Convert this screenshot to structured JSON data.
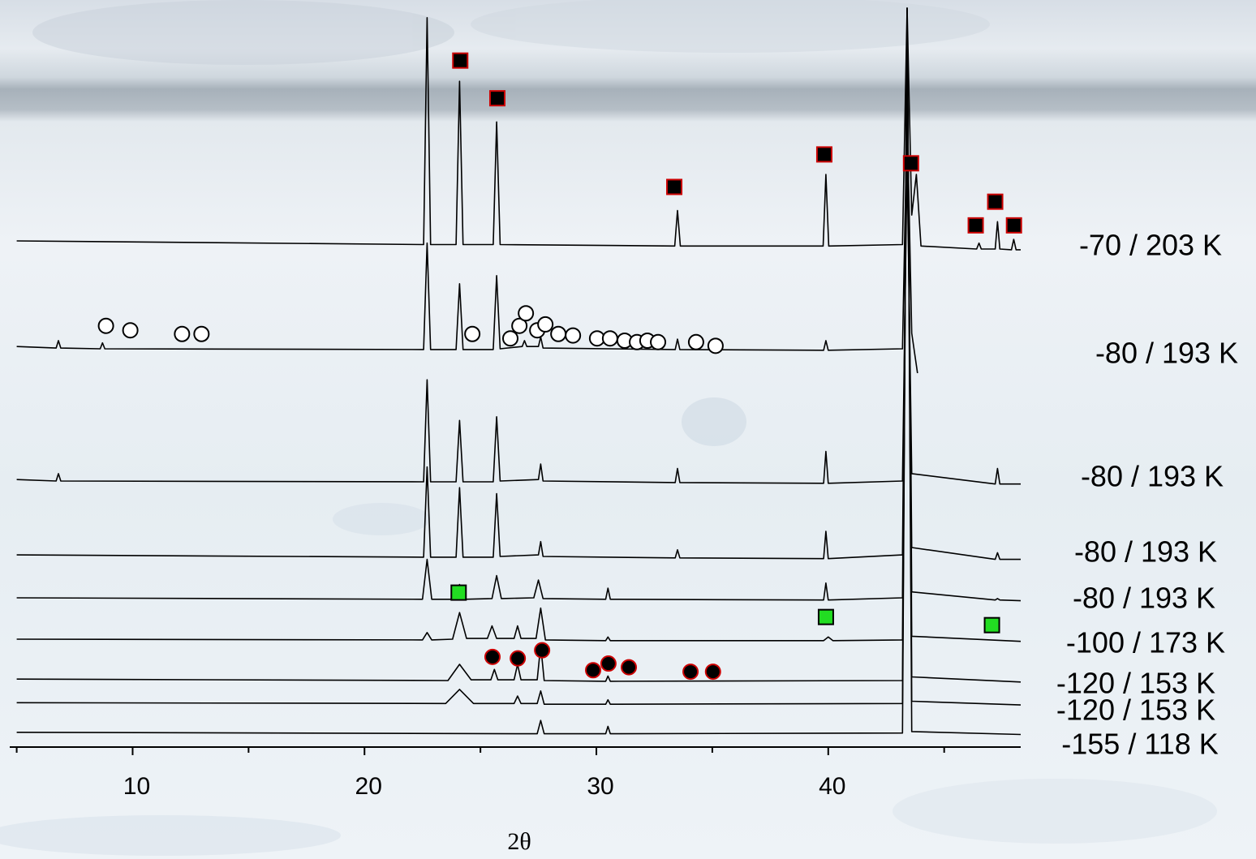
{
  "chart_data": {
    "type": "line",
    "xlabel": "2θ",
    "xlim": [
      4.7,
      48.3
    ],
    "ylim": [
      0,
      100
    ],
    "xticks": [
      10,
      20,
      30,
      40
    ],
    "xminorticks": [
      5,
      15,
      25,
      35,
      45
    ],
    "series": [
      {
        "name": "-70 / 203 K",
        "color": "#000000",
        "x": [
          5,
          22.55,
          22.7,
          22.85,
          23.95,
          24.1,
          24.25,
          25.55,
          25.7,
          25.85,
          33.38,
          33.5,
          33.62,
          39.78,
          39.9,
          40.02,
          43.2,
          43.4,
          43.6,
          43.8,
          44.0,
          46.4,
          46.5,
          46.6,
          47.2,
          47.3,
          47.4,
          47.9,
          48.0,
          48.1,
          48.3
        ],
        "values": [
          68.5,
          68,
          98.7,
          68,
          68,
          90.1,
          68,
          68,
          84.6,
          68,
          67.8,
          72.6,
          67.8,
          67.8,
          77.5,
          67.8,
          68,
          100,
          72,
          77.5,
          67.8,
          67.4,
          68.2,
          67.4,
          67.4,
          71.1,
          67.4,
          67.3,
          68.7,
          67.3,
          67.3
        ]
      },
      {
        "name": "-80 / 193 K",
        "color": "#000000",
        "x": [
          5,
          6.7,
          6.8,
          6.9,
          8.6,
          8.7,
          8.8,
          22.55,
          22.7,
          22.85,
          23.95,
          24.1,
          24.25,
          25.55,
          25.7,
          25.85,
          26.8,
          26.9,
          27.0,
          27.5,
          27.6,
          27.7,
          33.4,
          33.5,
          33.6,
          39.8,
          39.9,
          40.0,
          43.2,
          43.4,
          43.6,
          43.85
        ],
        "values": [
          54.2,
          54,
          55,
          54,
          53.9,
          54.7,
          53.9,
          53.8,
          68.2,
          53.8,
          53.8,
          62.7,
          53.8,
          53.8,
          63.8,
          53.9,
          54.2,
          55,
          54.2,
          54.2,
          55.5,
          54,
          53.8,
          55.2,
          53.8,
          53.7,
          55,
          53.7,
          53.9,
          85.7,
          56,
          50.6
        ]
      },
      {
        "name": "-80 / 193 K",
        "color": "#000000",
        "x": [
          5,
          6.7,
          6.8,
          6.9,
          22.55,
          22.7,
          22.85,
          23.95,
          24.1,
          24.25,
          25.55,
          25.7,
          25.85,
          27.5,
          27.6,
          27.7,
          33.4,
          33.5,
          33.6,
          39.8,
          39.9,
          40.0,
          43.2,
          43.4,
          43.6,
          47.2,
          47.3,
          47.4,
          48.3
        ],
        "values": [
          36.2,
          36,
          37,
          36,
          35.9,
          49.7,
          35.9,
          35.9,
          44.2,
          35.9,
          35.9,
          44.7,
          36,
          36.2,
          38.3,
          36,
          35.8,
          37.7,
          35.8,
          35.7,
          40,
          35.7,
          36,
          79.1,
          37,
          35.6,
          37.7,
          35.6,
          35.6
        ]
      },
      {
        "name": "-80 / 193 K",
        "color": "#000000",
        "x": [
          5,
          22.55,
          22.7,
          22.85,
          23.95,
          24.1,
          24.25,
          25.55,
          25.7,
          25.85,
          27.5,
          27.6,
          27.7,
          33.4,
          33.5,
          33.6,
          39.8,
          39.9,
          40.0,
          43.2,
          43.4,
          43.6,
          47.2,
          47.3,
          47.4,
          48.3
        ],
        "values": [
          26,
          25.7,
          37.9,
          25.7,
          25.7,
          35.1,
          25.7,
          25.7,
          34.3,
          25.8,
          26,
          27.8,
          25.8,
          25.6,
          26.7,
          25.6,
          25.5,
          29.2,
          25.5,
          26,
          90.1,
          27,
          25.4,
          26.3,
          25.4,
          25.4
        ]
      },
      {
        "name": "-80 / 193 K",
        "color": "#000000",
        "x": [
          5,
          22.5,
          22.7,
          22.9,
          23.9,
          24.1,
          24.3,
          25.5,
          25.7,
          25.9,
          27.3,
          27.5,
          27.7,
          30.4,
          30.5,
          30.6,
          39.8,
          39.9,
          40.0,
          43.2,
          43.4,
          43.6,
          47.2,
          47.3,
          47.4,
          48.3
        ],
        "values": [
          20.2,
          20,
          25.4,
          20,
          20,
          22,
          20,
          20.1,
          23.2,
          20.1,
          20.2,
          22.6,
          20.1,
          20,
          21.5,
          20,
          19.9,
          22.2,
          19.9,
          20.2,
          95.6,
          21,
          19.9,
          20.1,
          19.9,
          19.8
        ]
      },
      {
        "name": "-100 / 173 K",
        "color": "#000000",
        "x": [
          5,
          22.5,
          22.7,
          22.9,
          23.8,
          24.1,
          24.4,
          25.3,
          25.5,
          25.7,
          26.45,
          26.6,
          26.75,
          27.4,
          27.6,
          27.8,
          30.4,
          30.5,
          30.6,
          39.8,
          40,
          40.2,
          43.2,
          43.4,
          43.6,
          48.3
        ],
        "values": [
          14.6,
          14.5,
          15.5,
          14.5,
          14.6,
          18.2,
          14.7,
          14.7,
          16.4,
          14.7,
          14.7,
          16.4,
          14.7,
          14.7,
          18.8,
          14.5,
          14.4,
          14.9,
          14.4,
          14.4,
          14.9,
          14.4,
          14.5,
          100,
          15,
          14.3
        ]
      },
      {
        "name": "-120 / 153 K",
        "color": "#000000",
        "x": [
          5,
          23.6,
          24.1,
          24.6,
          25.45,
          25.6,
          25.75,
          26.45,
          26.6,
          26.75,
          27.45,
          27.6,
          27.75,
          30.4,
          30.5,
          30.6,
          43.2,
          43.4,
          43.6,
          48.3
        ],
        "values": [
          9.2,
          9,
          11.2,
          9.1,
          9.1,
          10.5,
          9.1,
          9.1,
          11.2,
          9.1,
          9.1,
          13.8,
          9,
          8.9,
          9.6,
          8.9,
          9,
          100,
          9.5,
          8.8
        ]
      },
      {
        "name": "-120 / 153 K",
        "color": "#000000",
        "x": [
          5,
          23.5,
          24.1,
          24.7,
          26.45,
          26.6,
          26.75,
          27.45,
          27.6,
          27.75,
          30.4,
          30.5,
          30.6,
          43.2,
          43.4,
          43.6,
          48.3
        ],
        "values": [
          6,
          5.9,
          7.8,
          5.9,
          5.9,
          6.9,
          5.9,
          5.9,
          7.6,
          5.8,
          5.8,
          6.4,
          5.8,
          5.9,
          100,
          6.2,
          5.7
        ]
      },
      {
        "name": "-155 / 118 K",
        "color": "#000000",
        "x": [
          5,
          27.45,
          27.6,
          27.75,
          30.4,
          30.5,
          30.6,
          43.2,
          43.4,
          43.6,
          48.3
        ],
        "values": [
          2,
          1.8,
          3.6,
          1.8,
          1.8,
          2.8,
          1.8,
          1.9,
          100,
          2.1,
          1.7
        ]
      }
    ],
    "markers": [
      {
        "shape": "square",
        "fill": "#000000",
        "stroke": "#cc0000",
        "x": [
          24.13,
          25.73,
          33.36,
          39.83,
          43.57,
          47.2,
          46.36,
          48.01
        ],
        "y": [
          92.9,
          87.8,
          75.8,
          80.2,
          79.0,
          73.8,
          70.6,
          70.6
        ]
      },
      {
        "shape": "circle",
        "fill": "#ffffff",
        "stroke": "#000000",
        "x": [
          8.85,
          9.9,
          12.13,
          12.97,
          24.65,
          26.29,
          26.68,
          26.96,
          27.45,
          27.8,
          28.36,
          28.99,
          30.03,
          30.59,
          31.22,
          31.75,
          32.2,
          32.66,
          34.3,
          35.14
        ],
        "y": [
          57.0,
          56.4,
          55.9,
          55.9,
          55.9,
          55.3,
          57.0,
          58.7,
          56.4,
          57.2,
          55.9,
          55.7,
          55.3,
          55.3,
          55.0,
          54.8,
          55.0,
          54.8,
          54.8,
          54.3
        ]
      },
      {
        "shape": "square",
        "fill": "#22dd22",
        "stroke": "#000000",
        "x": [
          24.06,
          39.9,
          47.06
        ],
        "y": [
          20.9,
          17.6,
          16.5
        ]
      },
      {
        "shape": "circle",
        "fill": "#000000",
        "stroke": "#cc0000",
        "x": [
          25.52,
          26.61,
          27.66,
          29.86,
          30.52,
          31.4,
          34.06,
          35.03
        ],
        "y": [
          12.2,
          12.0,
          13.1,
          10.4,
          11.3,
          10.8,
          10.2,
          10.2
        ]
      }
    ]
  }
}
